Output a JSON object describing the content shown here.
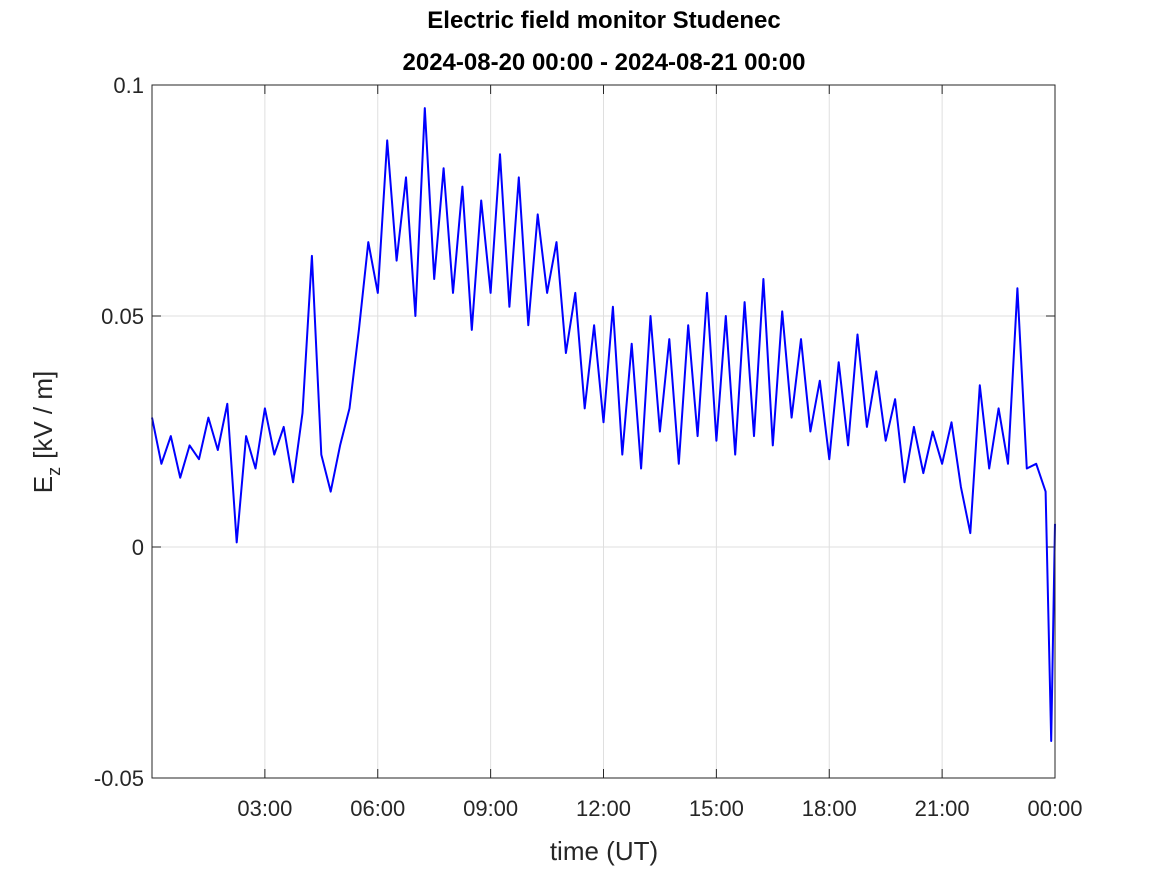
{
  "chart_data": {
    "type": "line",
    "title": "Electric field monitor Studenec",
    "subtitle": "2024-08-20 00:00 - 2024-08-21 00:00",
    "xlabel": "time (UT)",
    "ylabel": {
      "main": "E",
      "sub": "z",
      "rest": "[kV / m]"
    },
    "x": [
      0,
      0.25,
      0.5,
      0.75,
      1,
      1.25,
      1.5,
      1.75,
      2,
      2.25,
      2.5,
      2.75,
      3,
      3.25,
      3.5,
      3.75,
      4,
      4.25,
      4.5,
      4.75,
      5,
      5.25,
      5.5,
      5.75,
      6,
      6.25,
      6.5,
      6.75,
      7,
      7.25,
      7.5,
      7.75,
      8,
      8.25,
      8.5,
      8.75,
      9,
      9.25,
      9.5,
      9.75,
      10,
      10.25,
      10.5,
      10.75,
      11,
      11.25,
      11.5,
      11.75,
      12,
      12.25,
      12.5,
      12.75,
      13,
      13.25,
      13.5,
      13.75,
      14,
      14.25,
      14.5,
      14.75,
      15,
      15.25,
      15.5,
      15.75,
      16,
      16.25,
      16.5,
      16.75,
      17,
      17.25,
      17.5,
      17.75,
      18,
      18.25,
      18.5,
      18.75,
      19,
      19.25,
      19.5,
      19.75,
      20,
      20.25,
      20.5,
      20.75,
      21,
      21.25,
      21.5,
      21.75,
      22,
      22.25,
      22.5,
      22.75,
      23,
      23.25,
      23.5,
      23.75,
      23.9,
      24
    ],
    "series": [
      {
        "name": "Ez",
        "color": "#0000ff",
        "values": [
          0.028,
          0.018,
          0.024,
          0.015,
          0.022,
          0.019,
          0.028,
          0.021,
          0.031,
          0.001,
          0.024,
          0.017,
          0.03,
          0.02,
          0.026,
          0.014,
          0.029,
          0.063,
          0.02,
          0.012,
          0.022,
          0.03,
          0.047,
          0.066,
          0.055,
          0.088,
          0.062,
          0.08,
          0.05,
          0.095,
          0.058,
          0.082,
          0.055,
          0.078,
          0.047,
          0.075,
          0.055,
          0.085,
          0.052,
          0.08,
          0.048,
          0.072,
          0.055,
          0.066,
          0.042,
          0.055,
          0.03,
          0.048,
          0.027,
          0.052,
          0.02,
          0.044,
          0.017,
          0.05,
          0.025,
          0.045,
          0.018,
          0.048,
          0.024,
          0.055,
          0.023,
          0.05,
          0.02,
          0.053,
          0.024,
          0.058,
          0.022,
          0.051,
          0.028,
          0.045,
          0.025,
          0.036,
          0.019,
          0.04,
          0.022,
          0.046,
          0.026,
          0.038,
          0.023,
          0.032,
          0.014,
          0.026,
          0.016,
          0.025,
          0.018,
          0.027,
          0.013,
          0.003,
          0.035,
          0.017,
          0.03,
          0.018,
          0.056,
          0.017,
          0.018,
          0.012,
          -0.042,
          0.005
        ]
      }
    ],
    "xlim": [
      0,
      24
    ],
    "xticks": [
      {
        "value": 3,
        "label": "03:00"
      },
      {
        "value": 6,
        "label": "06:00"
      },
      {
        "value": 9,
        "label": "09:00"
      },
      {
        "value": 12,
        "label": "12:00"
      },
      {
        "value": 15,
        "label": "15:00"
      },
      {
        "value": 18,
        "label": "18:00"
      },
      {
        "value": 21,
        "label": "21:00"
      },
      {
        "value": 24,
        "label": "00:00"
      }
    ],
    "ylim": [
      -0.05,
      0.1
    ],
    "yticks": [
      -0.05,
      0,
      0.05,
      0.1
    ],
    "grid": true
  }
}
